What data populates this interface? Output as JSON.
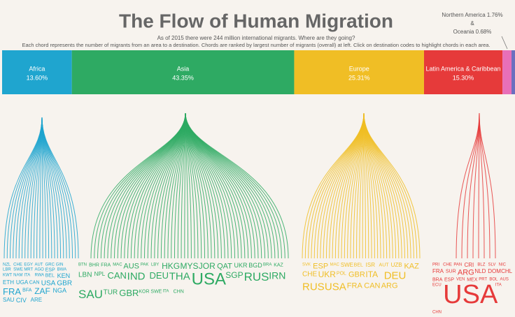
{
  "chart_data": {
    "type": "bar",
    "title": "The Flow of Human Migration",
    "subtitle": "As of 2015 there were 244 million international migrants.  Where are they going?",
    "description": "Each chord represents the number of migrants from an area to a destination.  Chords are ranked by largest number of migrants (overall) at left.  Click on destination codes to highlight chords in each area.",
    "annotation_joiner": "&",
    "categories": [
      "Africa",
      "Asia",
      "Europe",
      "Latin America & Caribbean",
      "Northern America",
      "Oceania"
    ],
    "values": [
      13.6,
      43.35,
      25.31,
      15.3,
      1.76,
      0.68
    ],
    "value_labels": [
      "13.60%",
      "43.35%",
      "25.31%",
      "15.30%",
      "1.76%",
      "0.68%"
    ],
    "colors": [
      "#1fa5cf",
      "#2eaa63",
      "#f0be25",
      "#e63a3a",
      "#e86fb8",
      "#6b6fbf"
    ],
    "xlim": [
      0,
      100
    ],
    "destinations": [
      [
        "NZL",
        "CHE",
        "EGY",
        "AUT",
        "GRC",
        "GIN",
        "LBR",
        "SWE",
        "MRT",
        "AGO",
        "ESP",
        "BWA",
        "KWT",
        "NAM",
        "ITA",
        "RWA",
        "BEL",
        "KEN",
        "ETH",
        "UGA",
        "CAN",
        "USA",
        "GBR",
        "FRA",
        "BFA",
        "ZAF",
        "NGA",
        "SAU",
        "CIV",
        "ARE"
      ],
      [
        "BTN",
        "BHR",
        "FRA",
        "MAC",
        "AUS",
        "PAK",
        "LBY",
        "HKG",
        "MYS",
        "JOR",
        "QAT",
        "UKR",
        "BGD",
        "BRA",
        "KAZ",
        "LBN",
        "NPL",
        "CAN",
        "IND",
        "DEU",
        "THA",
        "USA",
        "SGP",
        "RUS",
        "IRN",
        "SAU",
        "TUR",
        "GBR",
        "KOR",
        "SWE",
        "ITA",
        "CHN"
      ],
      [
        "SVK",
        "ESP",
        "MAC",
        "SWE",
        "BEL",
        "ISR",
        "AUT",
        "UZB",
        "KAZ",
        "CHE",
        "UKR",
        "POL",
        "GBR",
        "ITA",
        "DEU",
        "RUS",
        "USA",
        "FRA",
        "CAN",
        "ARG"
      ],
      [
        "PRI",
        "CHE",
        "PAN",
        "CRI",
        "BLZ",
        "SLV",
        "NIC",
        "FRA",
        "SUR",
        "ARG",
        "NLD",
        "DOM",
        "CHL",
        "BRA",
        "ESP",
        "VEN",
        "MEX",
        "PRT",
        "BOL",
        "AUS",
        "ECU",
        "USA",
        "ITA",
        "CHN"
      ]
    ]
  }
}
